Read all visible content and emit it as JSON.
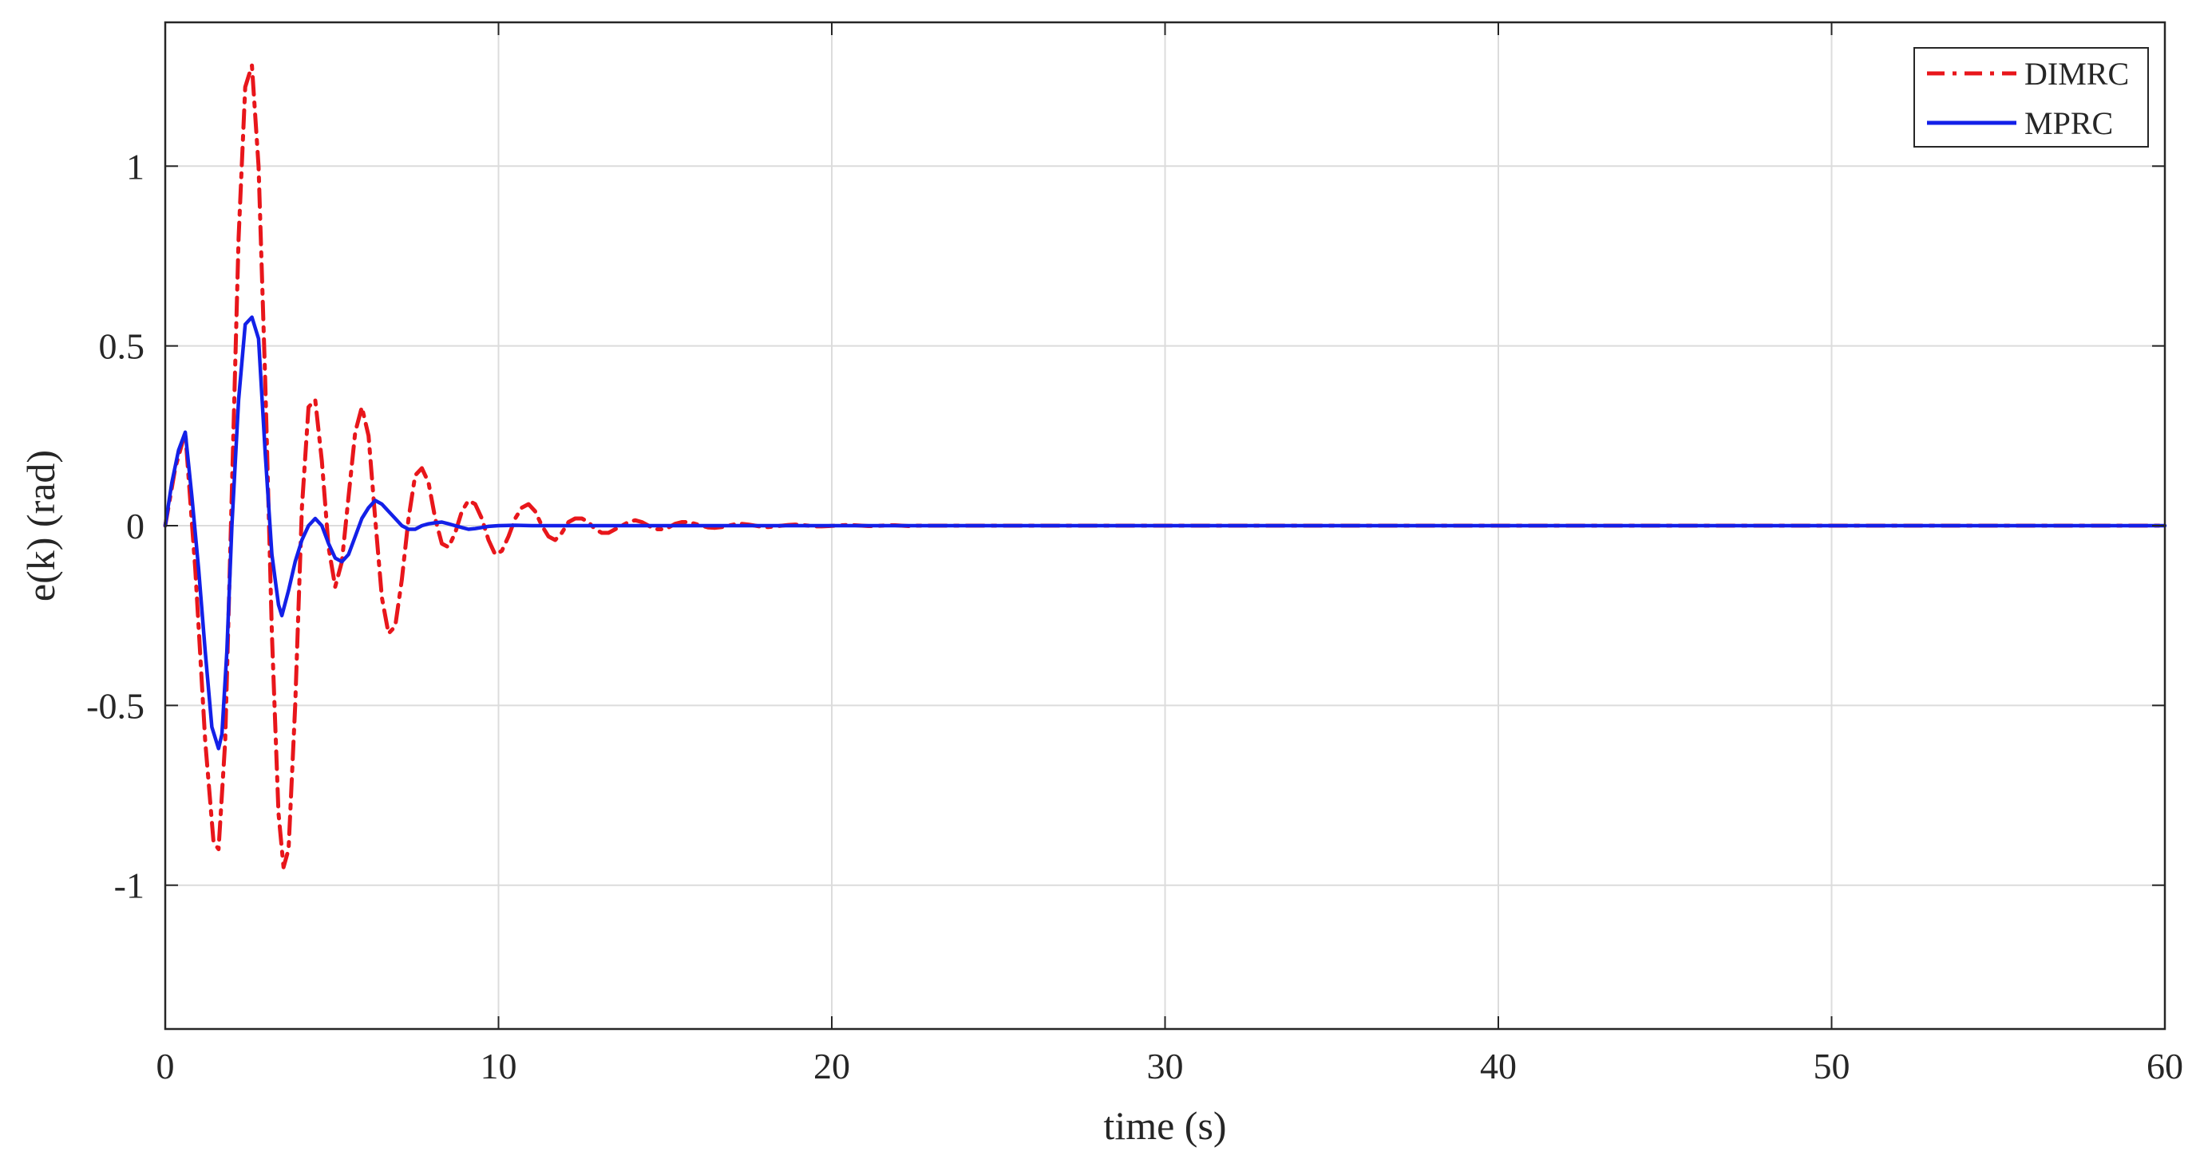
{
  "chart_data": {
    "type": "line",
    "title": "",
    "xlabel": "time (s)",
    "ylabel": "e(k) (rad)",
    "xlim": [
      0,
      60
    ],
    "ylim": [
      -1.4,
      1.4
    ],
    "xticks": [
      0,
      10,
      20,
      30,
      40,
      50,
      60
    ],
    "xtick_labels": [
      "0",
      "10",
      "20",
      "30",
      "40",
      "50",
      "60"
    ],
    "yticks": [
      -1,
      -0.5,
      0,
      0.5,
      1
    ],
    "ytick_labels": [
      "-1",
      "-0.5",
      "0",
      "0.5",
      "1"
    ],
    "grid": true,
    "legend_position": "top-right",
    "series": [
      {
        "name": "DIMRC",
        "color": "#e8161b",
        "line_style": "dash-dot",
        "x": [
          0,
          0.3,
          0.6,
          0.9,
          1.2,
          1.45,
          1.6,
          1.8,
          2.0,
          2.2,
          2.4,
          2.6,
          2.8,
          3.0,
          3.2,
          3.4,
          3.55,
          3.7,
          3.9,
          4.1,
          4.3,
          4.5,
          4.7,
          4.9,
          5.1,
          5.3,
          5.5,
          5.7,
          5.9,
          6.1,
          6.3,
          6.5,
          6.7,
          6.9,
          7.1,
          7.3,
          7.5,
          7.7,
          7.9,
          8.1,
          8.3,
          8.5,
          8.7,
          8.9,
          9.1,
          9.3,
          9.5,
          9.7,
          9.9,
          10.1,
          10.3,
          10.5,
          10.7,
          10.9,
          11.1,
          11.3,
          11.5,
          11.7,
          11.9,
          12.1,
          12.3,
          12.5,
          12.7,
          12.9,
          13.1,
          13.3,
          13.5,
          13.7,
          13.9,
          14.1,
          14.3,
          14.5,
          14.7,
          14.9,
          15.1,
          15.3,
          15.5,
          15.7,
          15.9,
          16.1,
          16.3,
          16.5,
          16.7,
          16.9,
          17.1,
          17.3,
          17.5,
          17.7,
          17.9,
          18.1,
          18.3,
          18.5,
          18.7,
          18.9,
          19.1,
          19.3,
          19.5,
          19.7,
          19.9,
          20.1,
          20.3,
          20.5,
          20.7,
          20.9,
          21.1,
          21.3,
          21.5,
          21.7,
          21.9,
          22.1,
          22.3,
          22.5,
          22.7,
          22.9,
          23.1,
          23.3,
          23.5,
          23.7,
          23.9,
          24.1,
          24.3,
          24.5,
          25,
          26,
          28,
          30,
          35,
          40,
          45,
          50,
          55,
          60
        ],
        "y": [
          0,
          0.16,
          0.26,
          -0.12,
          -0.6,
          -0.88,
          -0.9,
          -0.6,
          0.1,
          0.8,
          1.22,
          1.28,
          1.0,
          0.4,
          -0.3,
          -0.8,
          -0.95,
          -0.9,
          -0.5,
          0.05,
          0.33,
          0.35,
          0.18,
          -0.06,
          -0.17,
          -0.1,
          0.08,
          0.26,
          0.33,
          0.25,
          0.02,
          -0.2,
          -0.3,
          -0.28,
          -0.15,
          0.02,
          0.14,
          0.16,
          0.12,
          0.02,
          -0.05,
          -0.06,
          -0.02,
          0.04,
          0.07,
          0.06,
          0.02,
          -0.04,
          -0.08,
          -0.07,
          -0.03,
          0.02,
          0.05,
          0.06,
          0.04,
          0.0,
          -0.03,
          -0.04,
          -0.02,
          0.01,
          0.02,
          0.02,
          0.01,
          -0.01,
          -0.02,
          -0.02,
          -0.01,
          0.0,
          0.01,
          0.015,
          0.01,
          0.0,
          -0.01,
          -0.01,
          -0.005,
          0.005,
          0.01,
          0.01,
          0.005,
          0.0,
          -0.005,
          -0.006,
          -0.004,
          0.0,
          0.004,
          0.005,
          0.003,
          0.0,
          -0.003,
          -0.004,
          -0.002,
          0.0,
          0.002,
          0.003,
          0.002,
          0.0,
          -0.002,
          -0.002,
          -0.001,
          0.0,
          0.001,
          0.002,
          0.001,
          0.0,
          -0.001,
          -0.001,
          0.0,
          0.001,
          0.001,
          0.0,
          -0.001,
          0.0,
          0.0,
          0.0,
          0.0,
          0.0,
          0.0,
          0.0,
          0.0,
          0.0,
          0.0,
          0.0,
          0.0,
          0.0,
          0.0,
          0.0,
          0.0,
          0.0,
          0.0,
          0.0,
          0.0,
          0.0
        ]
      },
      {
        "name": "MPRC",
        "color": "#1320e8",
        "line_style": "solid",
        "x": [
          0,
          0.2,
          0.4,
          0.6,
          0.8,
          1.0,
          1.2,
          1.4,
          1.6,
          1.7,
          1.85,
          2.0,
          2.2,
          2.4,
          2.6,
          2.8,
          3.0,
          3.2,
          3.4,
          3.5,
          3.7,
          3.9,
          4.1,
          4.3,
          4.5,
          4.7,
          4.9,
          5.1,
          5.3,
          5.5,
          5.7,
          5.9,
          6.1,
          6.3,
          6.5,
          6.7,
          6.9,
          7.1,
          7.3,
          7.5,
          7.7,
          7.9,
          8.1,
          8.3,
          8.5,
          8.7,
          8.9,
          9.1,
          9.3,
          9.5,
          9.7,
          10.0,
          10.5,
          11,
          12,
          13,
          15,
          20,
          25,
          30,
          40,
          50,
          60
        ],
        "y": [
          0,
          0.12,
          0.21,
          0.26,
          0.08,
          -0.12,
          -0.35,
          -0.56,
          -0.62,
          -0.58,
          -0.35,
          0.0,
          0.35,
          0.56,
          0.58,
          0.52,
          0.2,
          -0.08,
          -0.22,
          -0.25,
          -0.18,
          -0.1,
          -0.04,
          0.0,
          0.02,
          0.0,
          -0.05,
          -0.09,
          -0.1,
          -0.08,
          -0.03,
          0.02,
          0.05,
          0.07,
          0.06,
          0.04,
          0.02,
          0.0,
          -0.01,
          -0.01,
          0.0,
          0.005,
          0.008,
          0.01,
          0.005,
          0.0,
          -0.005,
          -0.01,
          -0.008,
          -0.005,
          -0.002,
          0.0,
          0.001,
          0.0,
          0.0,
          0.0,
          0.0,
          0.0,
          0.0,
          0.0,
          0.0,
          0.0,
          0.0
        ]
      }
    ]
  }
}
